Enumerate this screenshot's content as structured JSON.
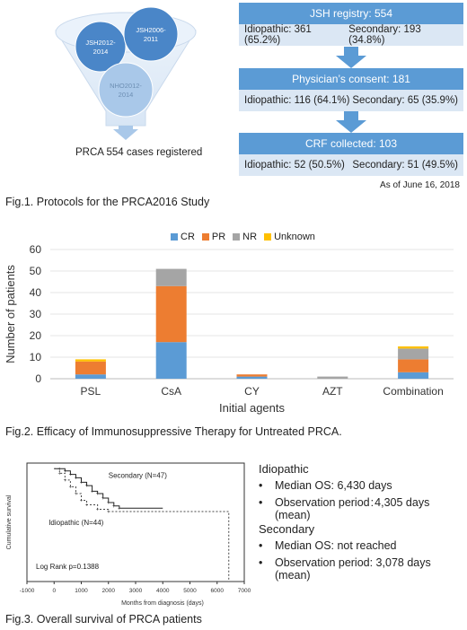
{
  "fig1": {
    "funnel": {
      "circles": [
        "JSH2012-2014",
        "JSH2006-2011",
        "NHO2012-2014"
      ],
      "registered": "PRCA 554 cases registered"
    },
    "flow": [
      {
        "title": "JSH registry: 554",
        "left": "Idiopathic: 361 (65.2%)",
        "right": "Secondary: 193 (34.8%)"
      },
      {
        "title": "Physician’s consent: 181",
        "left": "Idiopathic: 116 (64.1%)",
        "right": "Secondary: 65 (35.9%)"
      },
      {
        "title": "CRF collected: 103",
        "left": "Idiopathic: 52 (50.5%)",
        "right": "Secondary: 51 (49.5%)"
      }
    ],
    "date": "As of June 16, 2018",
    "caption": "Fig.1.  Protocols for the PRCA2016 Study"
  },
  "fig2": {
    "caption": "Fig.2.   Efficacy of Immunosuppressive Therapy for Untreated PRCA.",
    "colors": {
      "CR": "#5b9bd5",
      "PR": "#ed7d31",
      "NR": "#a5a5a5",
      "Unknown": "#ffc000"
    }
  },
  "chart_data": [
    {
      "type": "bar",
      "stacked": true,
      "categories": [
        "PSL",
        "CsA",
        "CY",
        "AZT",
        "Combination"
      ],
      "series": [
        {
          "name": "CR",
          "values": [
            2,
            17,
            1,
            0,
            3
          ]
        },
        {
          "name": "PR",
          "values": [
            6,
            26,
            1,
            0,
            6
          ]
        },
        {
          "name": "NR",
          "values": [
            0,
            8,
            0,
            1,
            5
          ]
        },
        {
          "name": "Unknown",
          "values": [
            1,
            0,
            0,
            0,
            1
          ]
        }
      ],
      "xlabel": "Initial agents",
      "ylabel": "Number of patients",
      "ylim": [
        0,
        60
      ],
      "yticks": [
        "0",
        "10",
        "20",
        "30",
        "40",
        "50",
        "60"
      ],
      "legend": "top"
    },
    {
      "type": "line",
      "series": [
        {
          "name": "Secondary (N=47)",
          "x": [
            0,
            200,
            400,
            600,
            800,
            1000,
            1200,
            1400,
            1600,
            1800,
            2000,
            2200,
            2400,
            4000
          ],
          "values": [
            1.0,
            1.0,
            0.98,
            0.95,
            0.92,
            0.88,
            0.85,
            0.8,
            0.78,
            0.74,
            0.7,
            0.67,
            0.65,
            0.65
          ]
        },
        {
          "name": "Idiopathic (N=44)",
          "x": [
            0,
            200,
            400,
            600,
            800,
            1000,
            1200,
            1600,
            2000,
            6430,
            6430
          ],
          "values": [
            1.0,
            0.96,
            0.9,
            0.84,
            0.78,
            0.72,
            0.68,
            0.64,
            0.62,
            0.62,
            0.0
          ]
        }
      ],
      "xlabel": "Months from diagnosis (days)",
      "ylabel": "Cumulative survival",
      "xticks": [
        "-1000",
        "0",
        "1000",
        "2000",
        "3000",
        "4000",
        "5000",
        "6000",
        "7000"
      ],
      "xlim": [
        -1000,
        7000
      ],
      "ylim": [
        0,
        1.05
      ],
      "annotation": "Log Rank p=0.1388"
    }
  ],
  "fig3": {
    "caption": "Fig.3.  Overall survival of PRCA patients",
    "idiopathic": {
      "title": "Idiopathic",
      "items": [
        "Median OS: 6,430 days",
        "Observation period : 4,305 days (mean)"
      ]
    },
    "secondary": {
      "title": "Secondary",
      "items": [
        "Median OS: not reached",
        "Observation period: 3,078 days (mean)"
      ]
    }
  }
}
